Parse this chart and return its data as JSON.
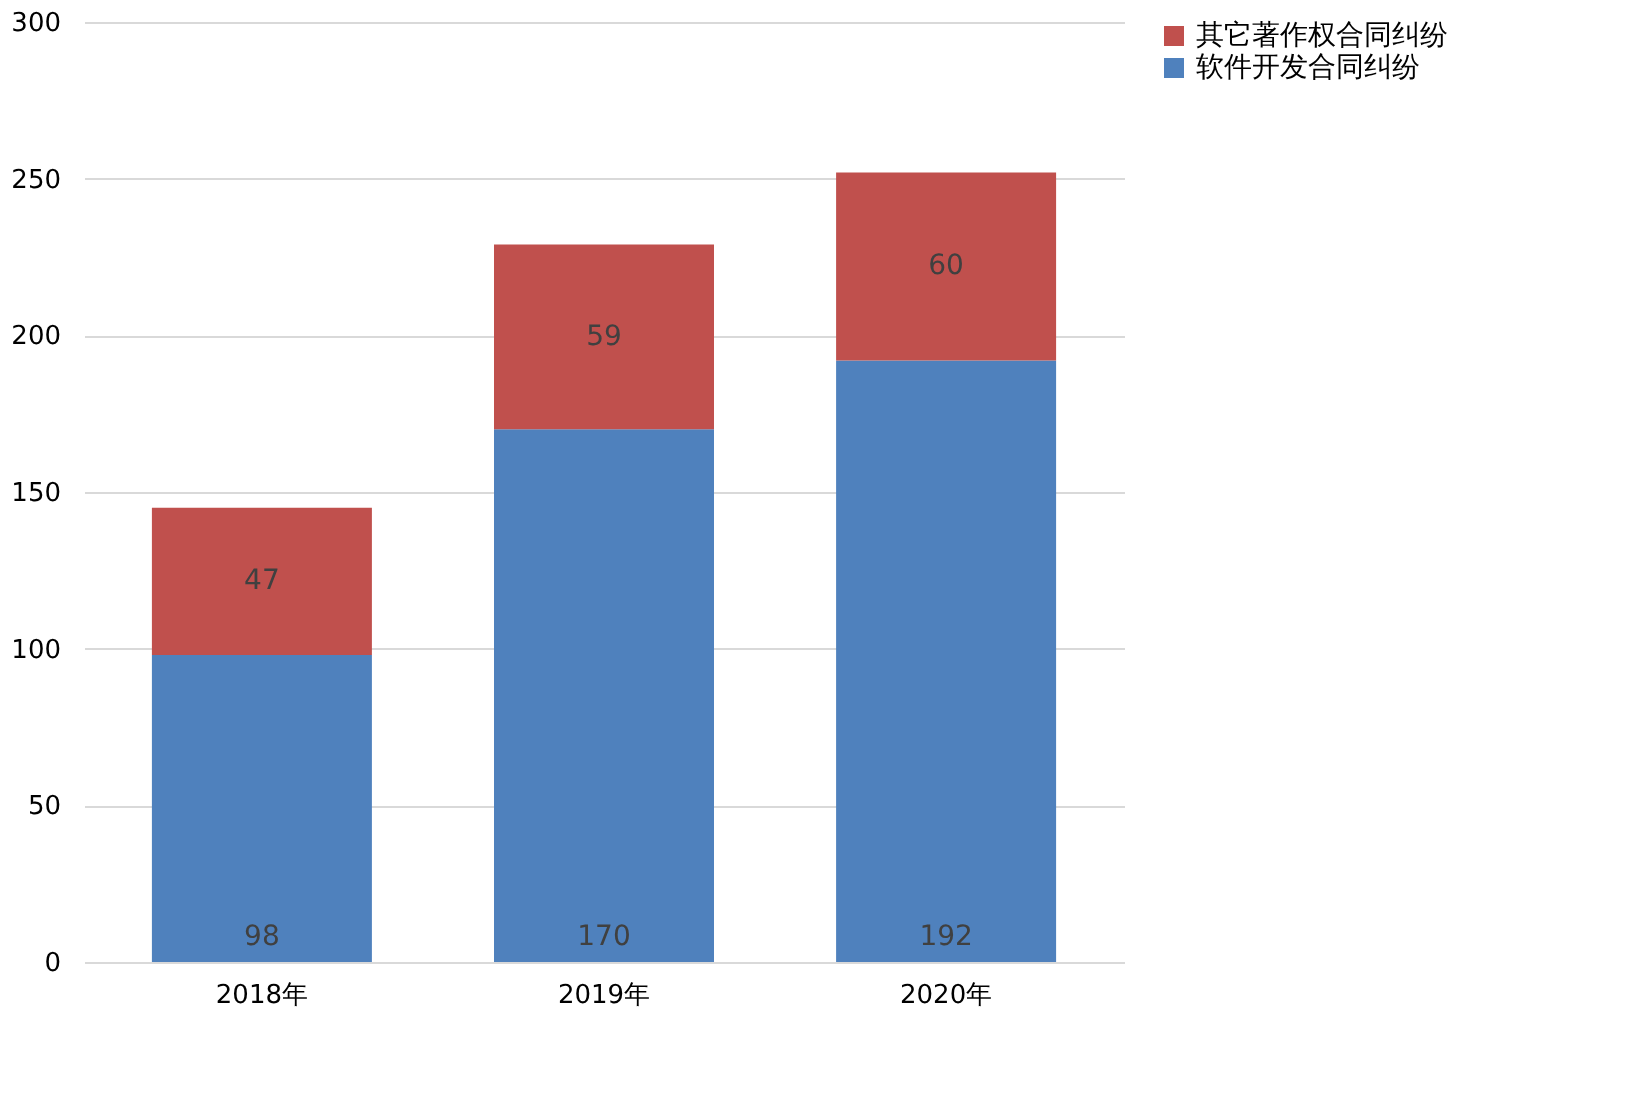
{
  "chart_data": {
    "type": "bar",
    "stacked": true,
    "categories": [
      "2018年",
      "2019年",
      "2020年"
    ],
    "series": [
      {
        "name": "软件开发合同纠纷",
        "color": "#4f81bd",
        "values": [
          98,
          170,
          192
        ]
      },
      {
        "name": "其它著作权合同纠纷",
        "color": "#c0504d",
        "values": [
          47,
          59,
          60
        ]
      }
    ],
    "ylim": [
      0,
      300
    ],
    "yticks": [
      0,
      50,
      100,
      150,
      200,
      250,
      300
    ],
    "grid": "y",
    "legend": "right",
    "data_labels": true
  }
}
